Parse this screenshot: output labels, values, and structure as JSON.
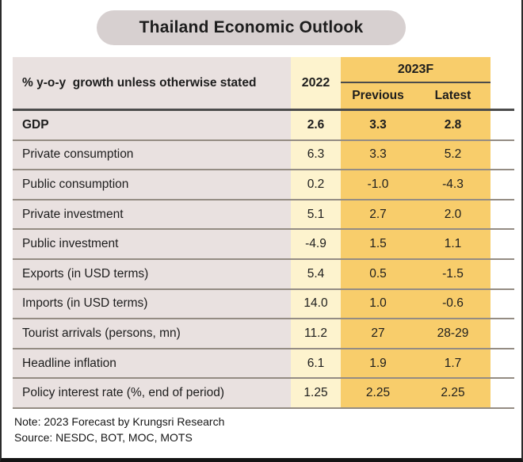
{
  "page": {
    "title": "Thailand Economic Outlook"
  },
  "colors": {
    "title_pill": "#D7D0D0",
    "label_column": "#E9E1E0",
    "year_2022_column": "#FDF3CE",
    "forecast_2023_column": "#F8CD6B",
    "row_separator": "#948C83",
    "header_rule": "#4B4B4B",
    "text": "#1D1D1D"
  },
  "chart_data": {
    "type": "table",
    "title": "Thailand Economic Outlook",
    "header": {
      "label": "% y-o-y  growth unless otherwise stated",
      "year_col": "2022",
      "forecast_group": "2023F",
      "sub_columns": [
        "Previous",
        "Latest"
      ]
    },
    "rows": [
      {
        "label": "GDP",
        "y2022": "2.6",
        "previous": "3.3",
        "latest": "2.8"
      },
      {
        "label": "Private consumption",
        "y2022": "6.3",
        "previous": "3.3",
        "latest": "5.2"
      },
      {
        "label": "Public consumption",
        "y2022": "0.2",
        "previous": "-1.0",
        "latest": "-4.3"
      },
      {
        "label": "Private investment",
        "y2022": "5.1",
        "previous": "2.7",
        "latest": "2.0"
      },
      {
        "label": "Public investment",
        "y2022": "-4.9",
        "previous": "1.5",
        "latest": "1.1"
      },
      {
        "label": "Exports (in USD terms)",
        "y2022": "5.4",
        "previous": "0.5",
        "latest": "-1.5"
      },
      {
        "label": "Imports (in USD terms)",
        "y2022": "14.0",
        "previous": "1.0",
        "latest": "-0.6"
      },
      {
        "label": "Tourist arrivals (persons, mn)",
        "y2022": "11.2",
        "previous": "27",
        "latest": "28-29"
      },
      {
        "label": "Headline inflation",
        "y2022": "6.1",
        "previous": "1.9",
        "latest": "1.7"
      },
      {
        "label": "Policy interest rate (%, end of period)",
        "y2022": "1.25",
        "previous": "2.25",
        "latest": "2.25"
      }
    ],
    "note": "Note: 2023 Forecast by Krungsri Research",
    "source": "Source: NESDC, BOT, MOC, MOTS"
  }
}
